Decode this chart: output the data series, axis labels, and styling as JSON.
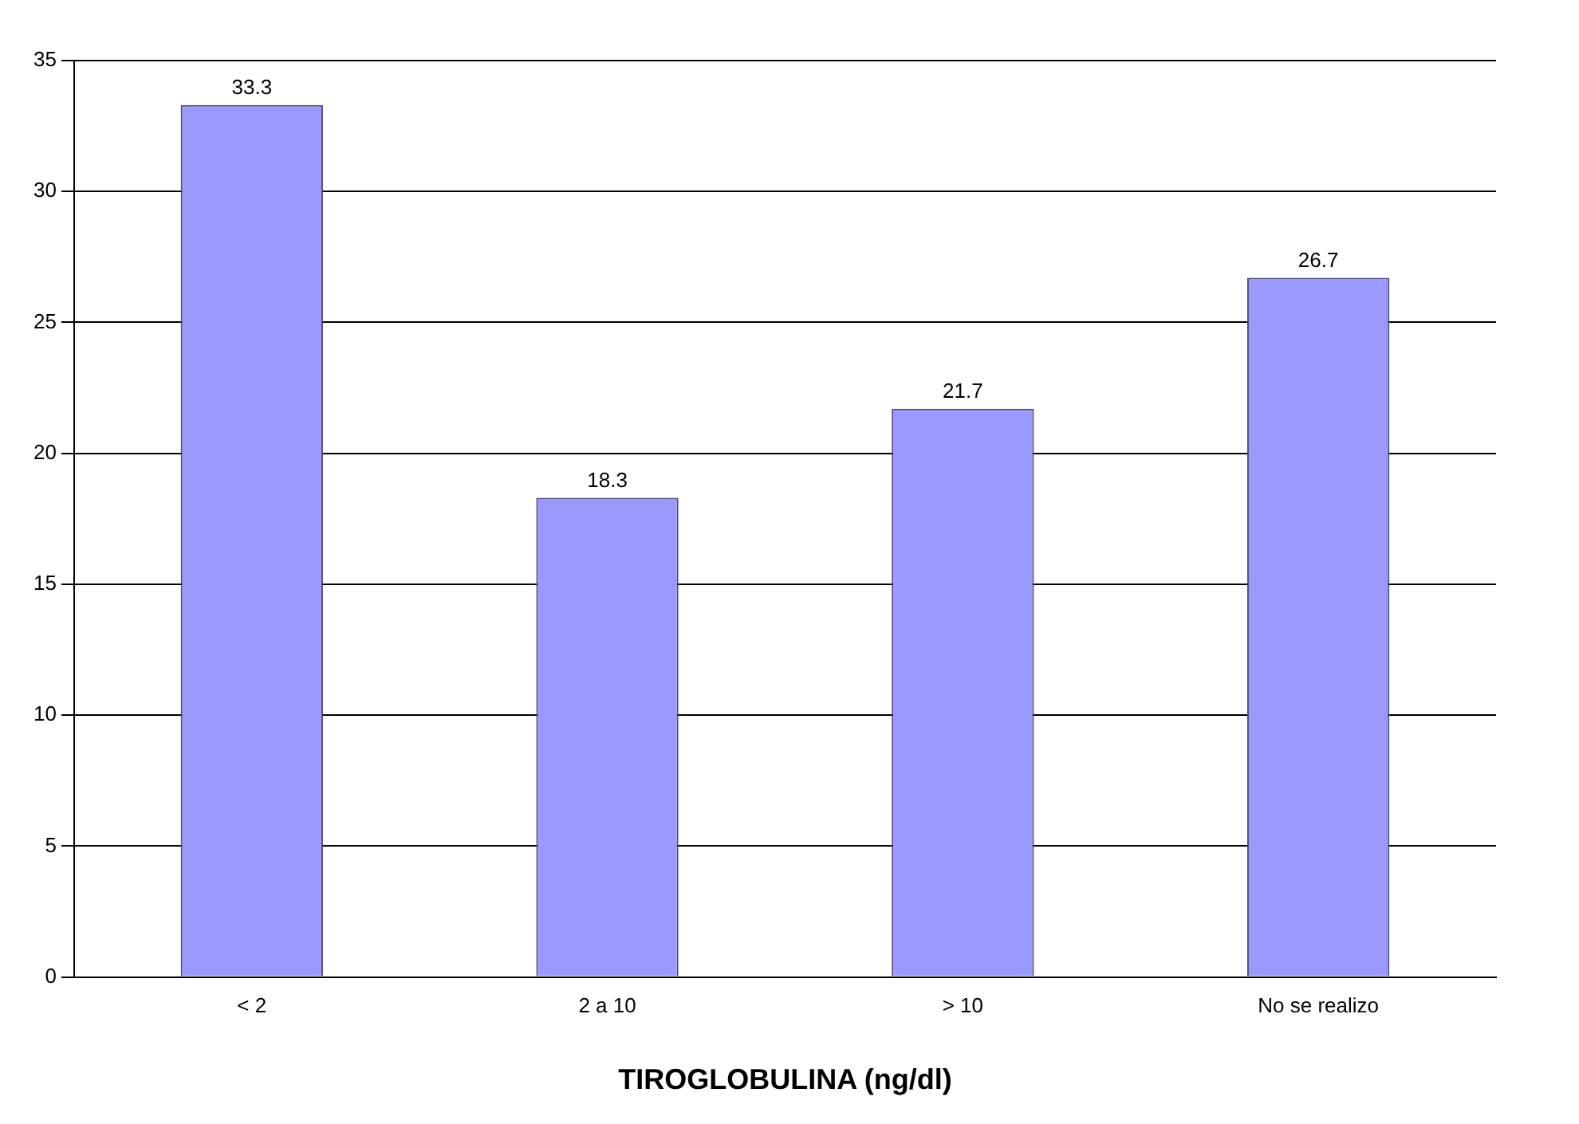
{
  "chart_data": {
    "type": "bar",
    "xlabel": "TIROGLOBULINA (ng/dl)",
    "categories": [
      "< 2",
      "2 a 10",
      "> 10",
      "No se realizo"
    ],
    "values": [
      33.3,
      18.3,
      21.7,
      26.7
    ],
    "color": "#9999ff",
    "ylim": [
      0,
      35
    ],
    "yticks": [
      0,
      5,
      10,
      15,
      20,
      25,
      30,
      35
    ],
    "grid": "y",
    "data_labels": true,
    "legend": false
  }
}
